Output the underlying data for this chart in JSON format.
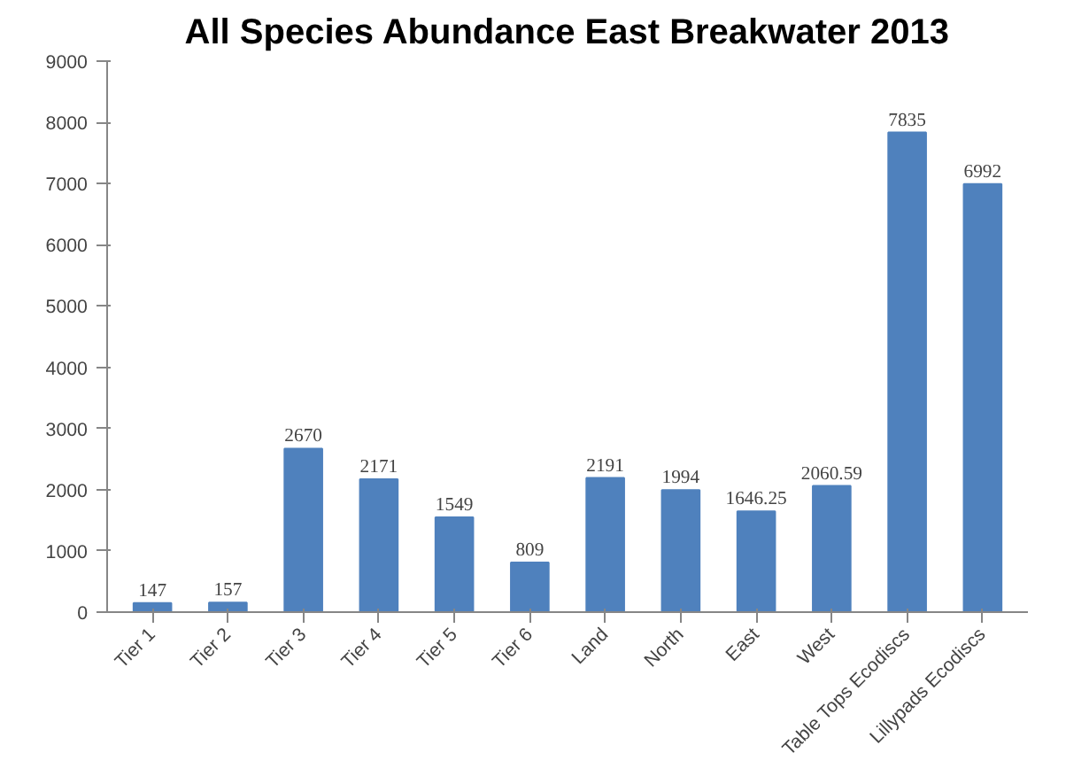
{
  "chart_data": {
    "type": "bar",
    "title": "All Species Abundance East Breakwater 2013",
    "categories": [
      "Tier 1",
      "Tier 2",
      "Tier 3",
      "Tier 4",
      "Tier 5",
      "Tier 6",
      "Land",
      "North",
      "East",
      "West",
      "Table Tops Ecodiscs",
      "Lillypads Ecodiscs"
    ],
    "values": [
      147,
      157,
      2670,
      2171,
      1549,
      809,
      2191,
      1994,
      1646.25,
      2060.59,
      7835,
      6992
    ],
    "color": "#4f81bd",
    "ylim": [
      0,
      9000
    ],
    "yticks": [
      0,
      1000,
      2000,
      3000,
      4000,
      5000,
      6000,
      7000,
      8000,
      9000
    ],
    "data_labels": true
  }
}
